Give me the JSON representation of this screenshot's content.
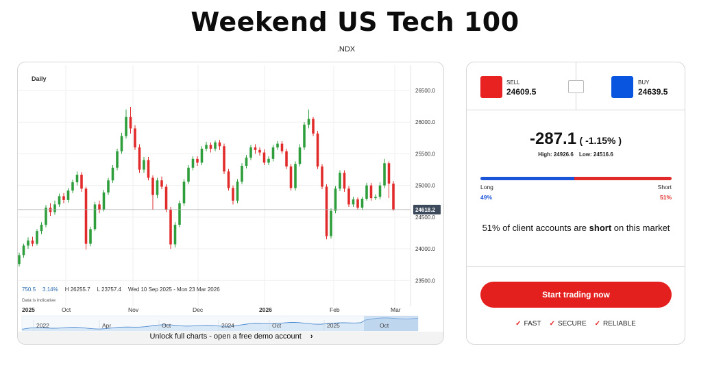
{
  "page": {
    "title": "Weekend US Tech 100",
    "symbol": ".NDX"
  },
  "chart_panel": {
    "timeframe": "Daily",
    "stats": {
      "change": "750.5",
      "change_pct": "3.14%",
      "high": "H 26255.7",
      "low": "L 23757.4",
      "range": "Wed 10 Sep 2025 - Mon 23 Mar 2026"
    },
    "indicative": "Data is indicative",
    "unlock_text": "Unlock full charts - open a free demo account",
    "unlock_chevron": "›"
  },
  "chart_data": {
    "type": "candlestick",
    "title": "",
    "ylim": [
      23200,
      26900
    ],
    "y_ticks": [
      "26500.0",
      "26000.0",
      "25500.0",
      "25000.0",
      "24500.0",
      "24000.0",
      "23500.0"
    ],
    "y_tick_values": [
      26500,
      26000,
      25500,
      25000,
      24500,
      24000,
      23500
    ],
    "x_tick_labels": [
      "2025",
      "Oct",
      "Nov",
      "Dec",
      "2026",
      "Feb",
      "Mar"
    ],
    "current_price": 24618.2,
    "current_price_label": "24618.2",
    "navigator_labels": [
      "2022",
      "Apr",
      "Oct",
      "2024",
      "Oct",
      "2025",
      "Oct"
    ],
    "colors": {
      "up": "#2e9e3c",
      "down": "#e12b2b",
      "nav_fill": "#c7dcf2",
      "nav_line": "#4a89cf"
    },
    "candles": [
      [
        23760,
        23900,
        23720,
        23940
      ],
      [
        23900,
        24050,
        23860,
        24080
      ],
      [
        24050,
        24130,
        24000,
        24180
      ],
      [
        24130,
        24080,
        24040,
        24190
      ],
      [
        24080,
        24280,
        24050,
        24310
      ],
      [
        24280,
        24380,
        24230,
        24420
      ],
      [
        24380,
        24650,
        24340,
        24690
      ],
      [
        24650,
        24580,
        24520,
        24720
      ],
      [
        24580,
        24700,
        24540,
        24760
      ],
      [
        24700,
        24830,
        24660,
        24870
      ],
      [
        24830,
        24770,
        24720,
        24880
      ],
      [
        24770,
        24920,
        24730,
        24960
      ],
      [
        24920,
        25050,
        24880,
        25090
      ],
      [
        25050,
        25170,
        25000,
        25220
      ],
      [
        25170,
        24950,
        24900,
        25210
      ],
      [
        24950,
        24080,
        23990,
        24980
      ],
      [
        24080,
        24310,
        24040,
        24350
      ],
      [
        24310,
        24700,
        24280,
        24740
      ],
      [
        24700,
        24620,
        24560,
        24760
      ],
      [
        24620,
        24890,
        24590,
        24930
      ],
      [
        24890,
        25080,
        24850,
        25120
      ],
      [
        25080,
        25280,
        25040,
        25320
      ],
      [
        25280,
        25540,
        25240,
        25580
      ],
      [
        25540,
        25780,
        25500,
        25830
      ],
      [
        25780,
        26080,
        25740,
        26200
      ],
      [
        26080,
        25900,
        25820,
        26240
      ],
      [
        25900,
        25600,
        25560,
        25950
      ],
      [
        25600,
        25250,
        25200,
        25650
      ],
      [
        25250,
        25400,
        25200,
        25450
      ],
      [
        25400,
        25120,
        25080,
        25450
      ],
      [
        25120,
        24850,
        24620,
        25160
      ],
      [
        24850,
        25080,
        24800,
        25120
      ],
      [
        25080,
        24980,
        24940,
        25140
      ],
      [
        24980,
        24620,
        24580,
        25020
      ],
      [
        24620,
        24070,
        24000,
        24660
      ],
      [
        24070,
        24380,
        24020,
        24420
      ],
      [
        24380,
        24720,
        24340,
        24760
      ],
      [
        24720,
        25060,
        24680,
        25100
      ],
      [
        25060,
        25280,
        25020,
        25320
      ],
      [
        25280,
        25420,
        25240,
        25460
      ],
      [
        25420,
        25360,
        25310,
        25460
      ],
      [
        25360,
        25580,
        25320,
        25620
      ],
      [
        25580,
        25640,
        25540,
        25690
      ],
      [
        25640,
        25580,
        25520,
        25680
      ],
      [
        25580,
        25680,
        25540,
        25710
      ],
      [
        25680,
        25620,
        25560,
        25720
      ],
      [
        25620,
        25220,
        25180,
        25660
      ],
      [
        25220,
        24960,
        24920,
        25260
      ],
      [
        24960,
        24760,
        24700,
        25000
      ],
      [
        24760,
        25060,
        24720,
        25100
      ],
      [
        25060,
        25310,
        25020,
        25350
      ],
      [
        25310,
        25440,
        25270,
        25480
      ],
      [
        25440,
        25600,
        25400,
        25640
      ],
      [
        25600,
        25560,
        25500,
        25650
      ],
      [
        25560,
        25520,
        25470,
        25600
      ],
      [
        25520,
        25360,
        25320,
        25570
      ],
      [
        25360,
        25420,
        25320,
        25460
      ],
      [
        25420,
        25600,
        25380,
        25640
      ],
      [
        25600,
        25660,
        25560,
        25700
      ],
      [
        25660,
        25540,
        25500,
        25700
      ],
      [
        25540,
        25300,
        25260,
        25580
      ],
      [
        25300,
        24960,
        24920,
        25340
      ],
      [
        24960,
        25340,
        24920,
        25380
      ],
      [
        25340,
        25600,
        25300,
        25650
      ],
      [
        25600,
        25960,
        25560,
        26000
      ],
      [
        25960,
        26050,
        25900,
        26200
      ],
      [
        26050,
        25820,
        25780,
        26080
      ],
      [
        25820,
        25300,
        25260,
        25860
      ],
      [
        25300,
        24980,
        24940,
        25340
      ],
      [
        24980,
        24200,
        24150,
        25020
      ],
      [
        24200,
        24600,
        24160,
        24640
      ],
      [
        24600,
        24950,
        24560,
        24990
      ],
      [
        24950,
        25200,
        24910,
        25240
      ],
      [
        25200,
        24950,
        24900,
        25240
      ],
      [
        24950,
        24700,
        24660,
        24990
      ],
      [
        24700,
        24780,
        24660,
        24820
      ],
      [
        24780,
        24650,
        24620,
        24810
      ],
      [
        24650,
        24790,
        24610,
        24820
      ],
      [
        24790,
        25000,
        24760,
        25040
      ],
      [
        25000,
        24800,
        24760,
        25040
      ],
      [
        24800,
        24820,
        24770,
        24860
      ],
      [
        24820,
        25000,
        24780,
        25050
      ],
      [
        25000,
        25350,
        24960,
        25420
      ],
      [
        25350,
        25030,
        24800,
        25380
      ],
      [
        25030,
        24618,
        24600,
        25070
      ]
    ]
  },
  "quote": {
    "sell_label": "SELL",
    "sell_price": "24609.5",
    "buy_label": "BUY",
    "buy_price": "24639.5",
    "change": "-287.1",
    "change_pct": "( -1.15% )",
    "high": "High: 24926.6",
    "low": "Low: 24516.6",
    "colors": {
      "sell": "#e82121",
      "buy": "#0a55df"
    }
  },
  "sentiment": {
    "long_label": "Long",
    "short_label": "Short",
    "long_pct": "49%",
    "short_pct": "51%",
    "long_value": 0.49,
    "summary_prefix": "51% of client accounts are ",
    "summary_bold": "short",
    "summary_suffix": " on this market"
  },
  "cta": {
    "label": "Start trading now",
    "badges": [
      {
        "check": "✓",
        "text": "FAST"
      },
      {
        "check": "✓",
        "text": "SECURE"
      },
      {
        "check": "✓",
        "text": "RELIABLE"
      }
    ]
  }
}
